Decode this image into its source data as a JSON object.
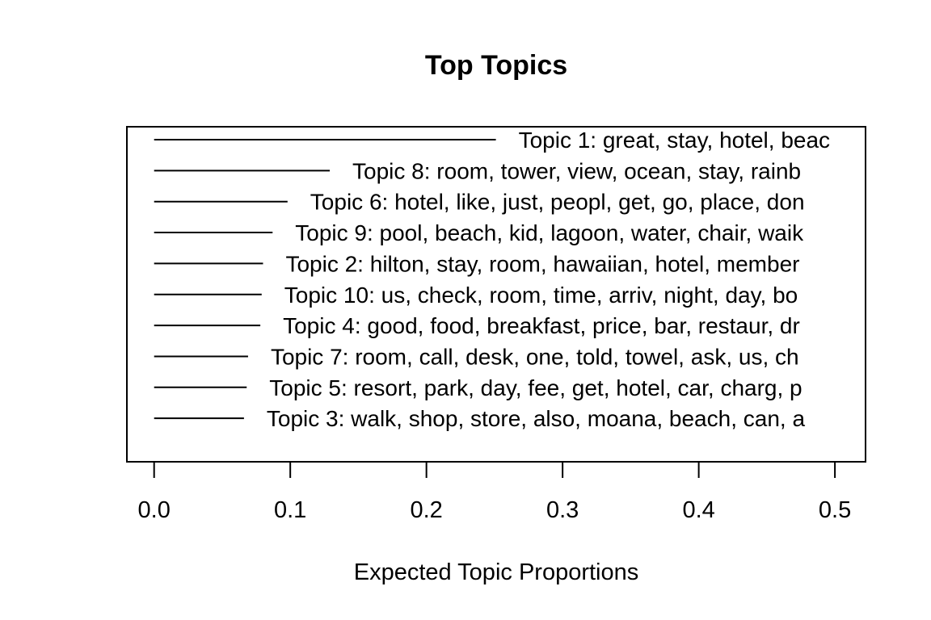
{
  "chart_data": {
    "type": "bar",
    "title": "Top Topics",
    "xlabel": "Expected Topic Proportions",
    "ylabel": "",
    "xlim": [
      -0.02,
      0.5225
    ],
    "xticks": [
      "0.0",
      "0.1",
      "0.2",
      "0.3",
      "0.4",
      "0.5"
    ],
    "xtick_values": [
      0.0,
      0.1,
      0.2,
      0.3,
      0.4,
      0.5
    ],
    "orientation": "horizontal",
    "grid": false,
    "categories": [
      "Topic 1: great, stay, hotel, beac",
      "Topic 8: room, tower, view, ocean, stay, rainb",
      "Topic 6: hotel, like, just, peopl, get, go, place, don",
      "Topic 9: pool, beach, kid, lagoon, water, chair, waik",
      "Topic 2: hilton, stay, room, hawaiian, hotel, member",
      "Topic 10: us, check, room, time, arriv, night, day, bo",
      "Topic 4: good, food, breakfast, price, bar, restaur, dr",
      "Topic 7: room, call, desk, one, told, towel, ask, us, ch",
      "Topic 5: resort, park, day, fee, get, hotel, car, charg, p",
      "Topic 3: walk, shop, store, also, moana, beach, can, a"
    ],
    "values": [
      0.251,
      0.129,
      0.098,
      0.087,
      0.08,
      0.079,
      0.078,
      0.069,
      0.068,
      0.066
    ]
  }
}
